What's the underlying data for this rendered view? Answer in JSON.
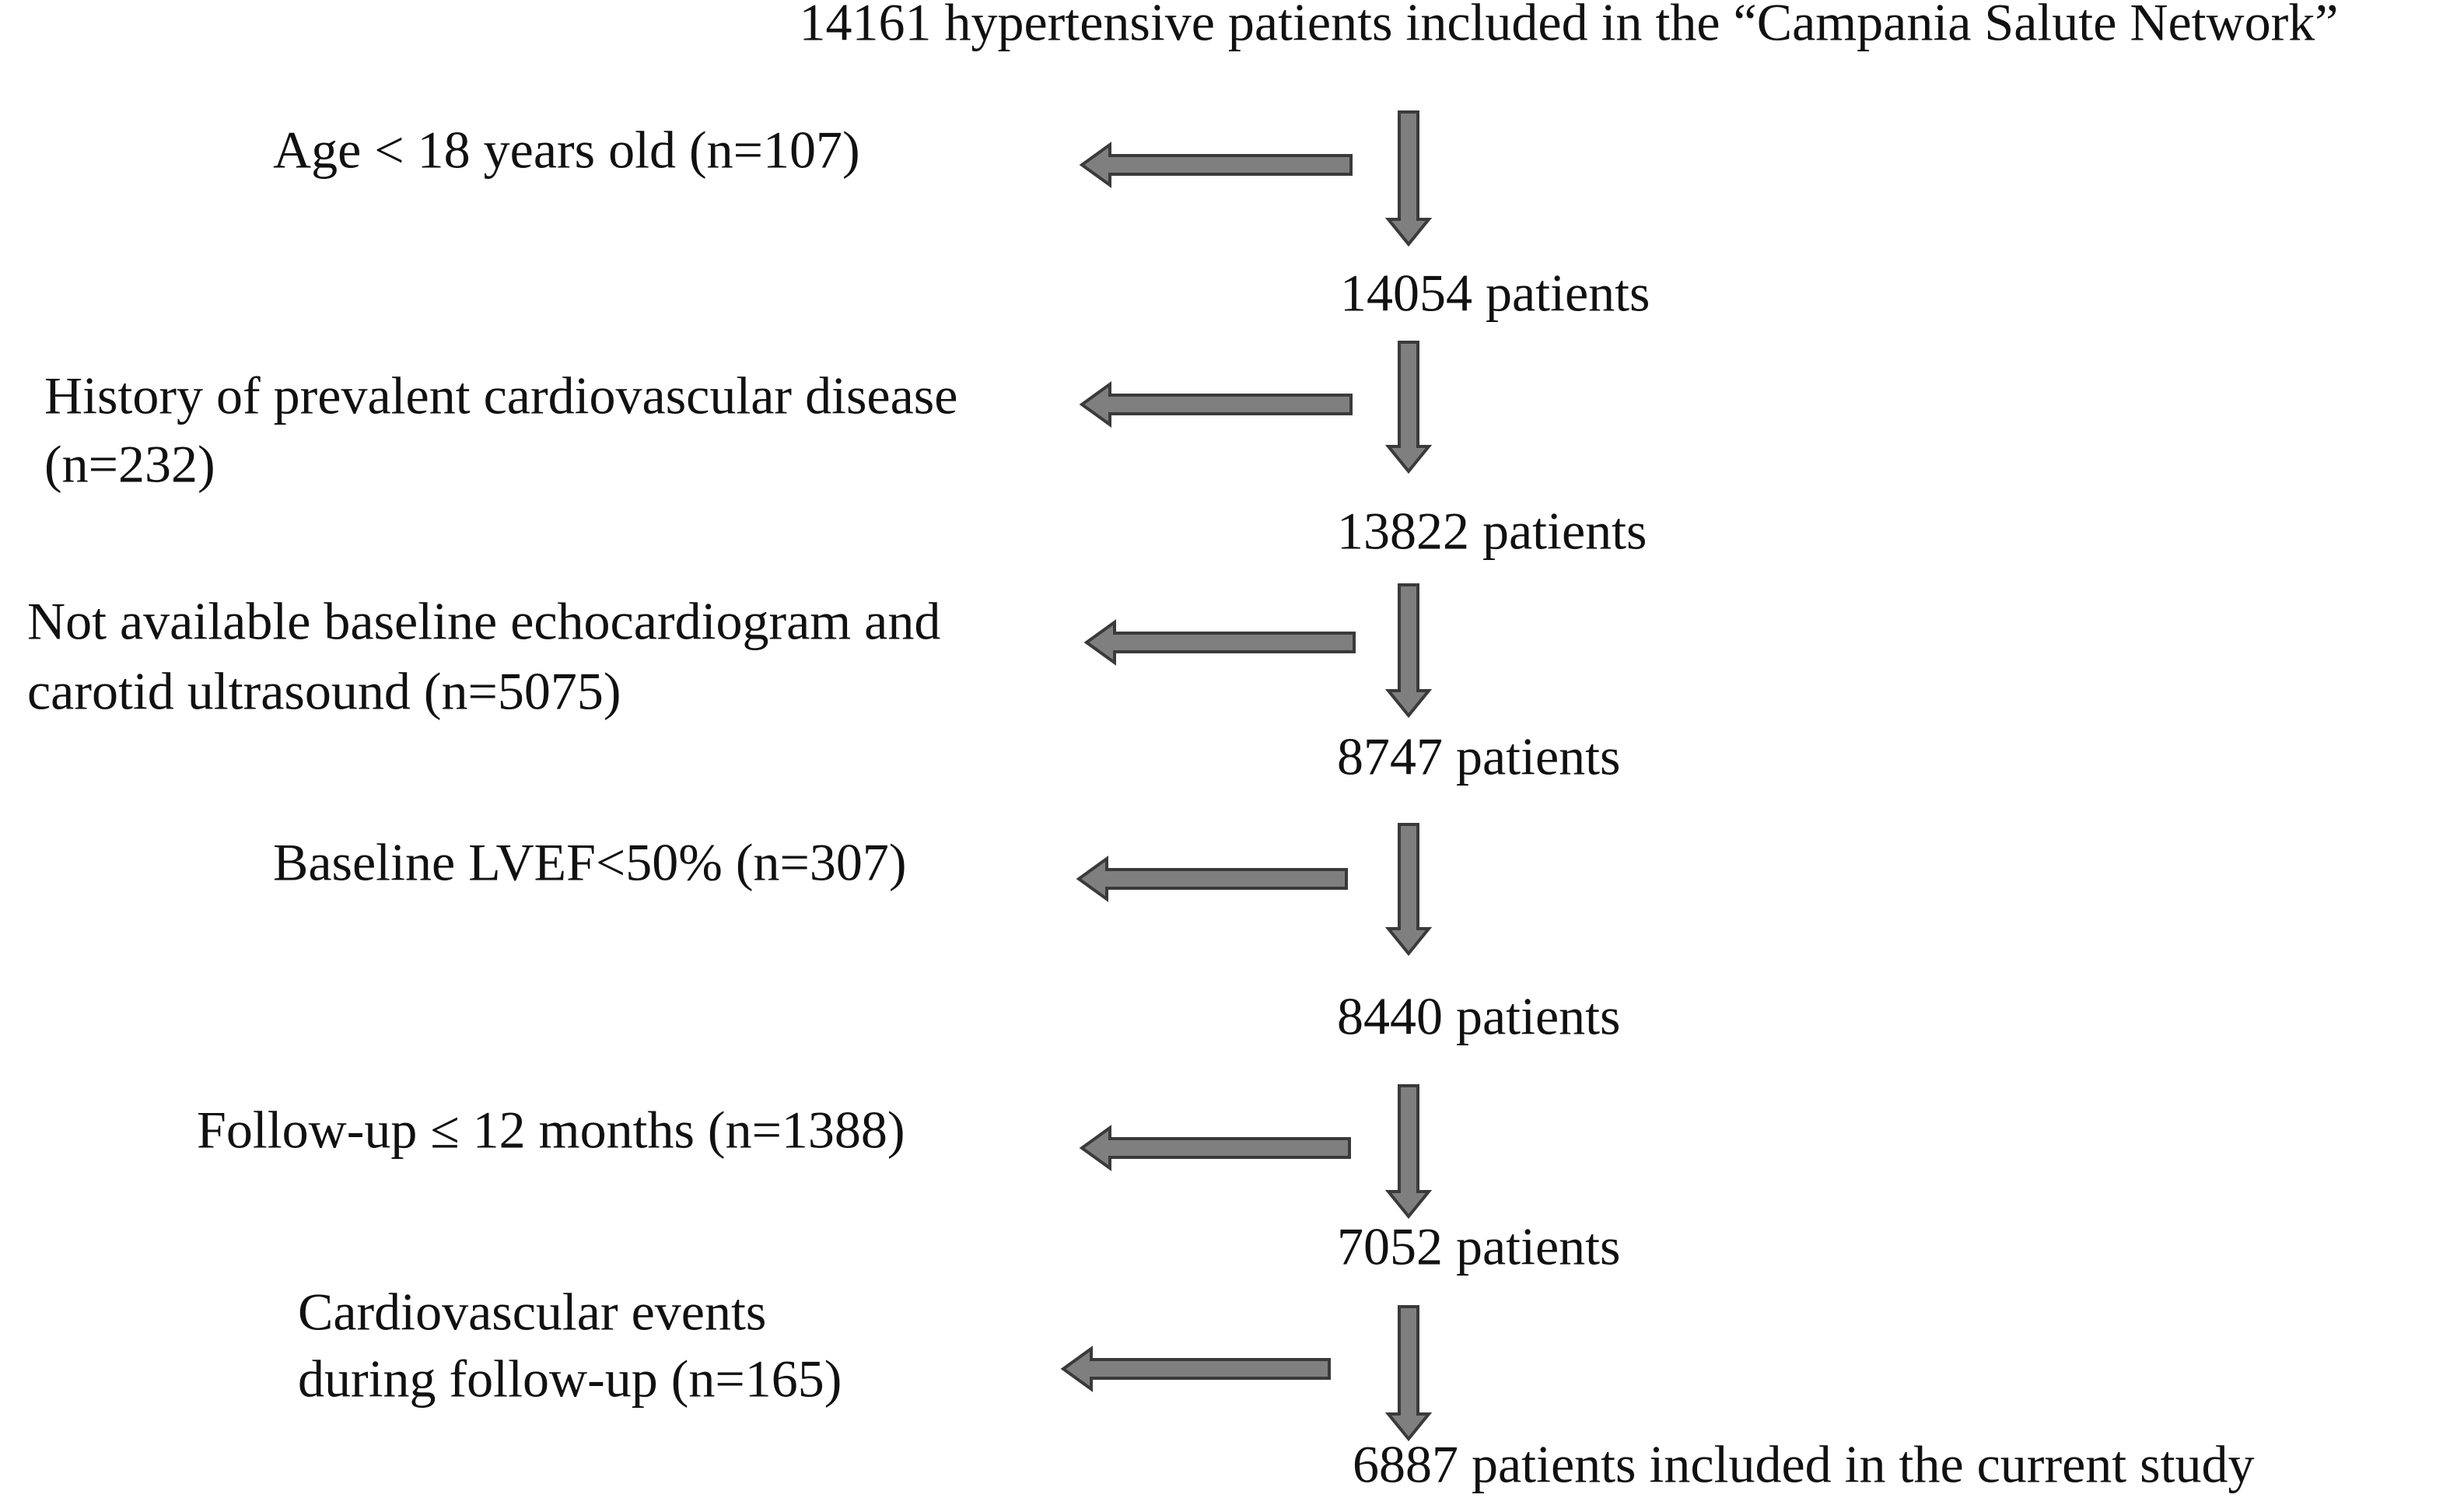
{
  "header": {
    "title": "14161 hypertensive patients included in the “Campania Salute Network”"
  },
  "steps": [
    "14054 patients",
    "13822 patients",
    "8747 patients",
    "8440 patients",
    "7052 patients",
    "6887 patients included in the current study"
  ],
  "exclusions": [
    {
      "lines": [
        "Age < 18 years old (n=107)"
      ]
    },
    {
      "lines": [
        "History of prevalent cardiovascular disease",
        "(n=232)"
      ]
    },
    {
      "lines": [
        "Not available baseline echocardiogram and",
        "carotid ultrasound  (n=5075)"
      ]
    },
    {
      "lines": [
        "Baseline LVEF<50% (n=307)"
      ]
    },
    {
      "lines": [
        "Follow-up ≤ 12 months (n=1388)"
      ]
    },
    {
      "lines": [
        "Cardiovascular events",
        "during follow-up (n=165)"
      ]
    }
  ]
}
